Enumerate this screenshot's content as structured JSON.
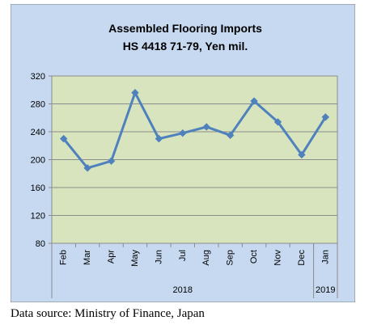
{
  "colors": {
    "outer_background": "#c6d9f1",
    "plot_background": "#d7e4bd",
    "line": "#4f81bd",
    "grid": "#8c8c8c",
    "text": "#000000"
  },
  "chart_data": {
    "type": "line",
    "title": "Assembled Flooring Imports",
    "subtitle": "HS 4418 71-79, Yen mil.",
    "categories": [
      "Feb",
      "Mar",
      "Apr",
      "May",
      "Jun",
      "Jul",
      "Aug",
      "Sep",
      "Oct",
      "Nov",
      "Dec",
      "Jan"
    ],
    "values": [
      230,
      188,
      198,
      296,
      230,
      238,
      247,
      235,
      284,
      254,
      207,
      261
    ],
    "year_groups": [
      {
        "label": "2018",
        "start": 0,
        "end": 10
      },
      {
        "label": "2019",
        "start": 11,
        "end": 11
      }
    ],
    "ylim": [
      80,
      320
    ],
    "yticks": [
      80,
      120,
      160,
      200,
      240,
      280,
      320
    ],
    "grid": true,
    "legend": "none",
    "xlabel": "",
    "ylabel": ""
  },
  "footer": {
    "source_text": "Data source: Ministry of Finance, Japan"
  }
}
